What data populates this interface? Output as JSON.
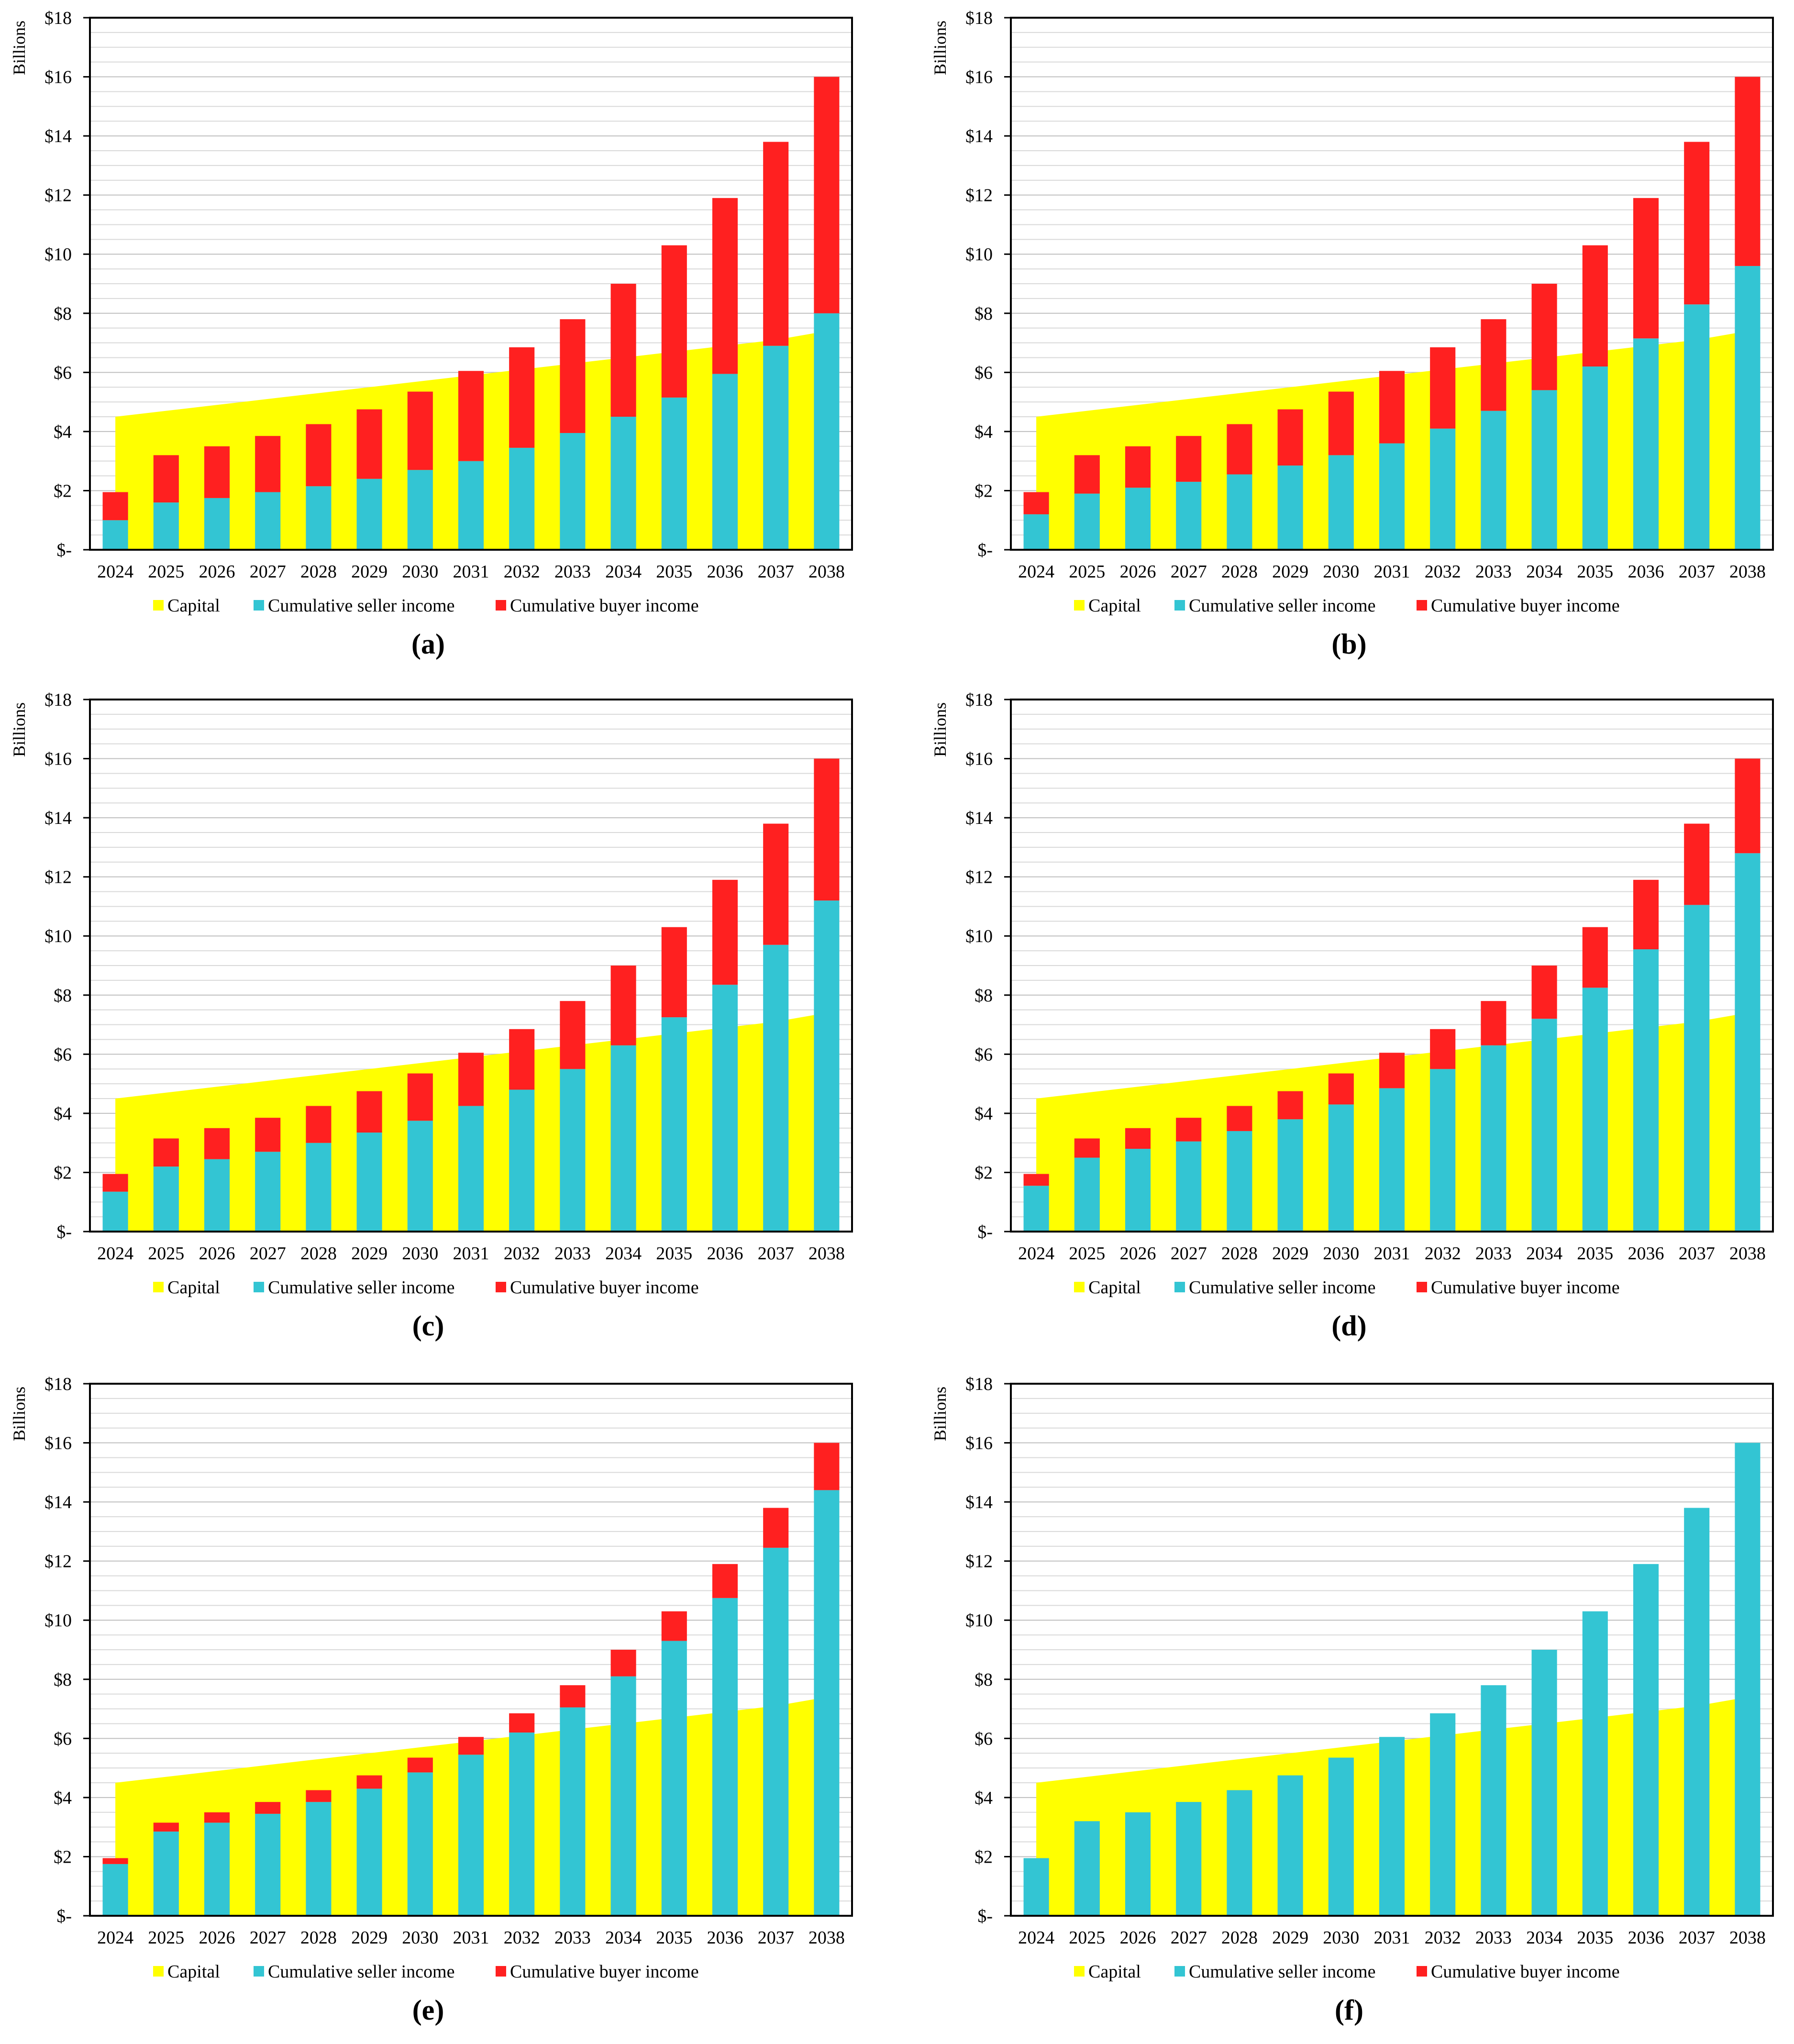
{
  "colors": {
    "capital": "#ffff00",
    "seller": "#33c5d3",
    "buyer": "#ff2020",
    "grid": "#d9d9d9",
    "axis": "#000000"
  },
  "y_axis": {
    "label": "Billions",
    "tick_labels": [
      "$-",
      "$2",
      "$4",
      "$6",
      "$8",
      "$10",
      "$12",
      "$14",
      "$16",
      "$18"
    ]
  },
  "legend": {
    "capital": "Capital",
    "seller": "Cumulative seller income",
    "buyer": "Cumulative buyer income"
  },
  "chart_data": [
    {
      "panel": "(a)",
      "type": "bar",
      "stacked": true,
      "ylabel": "Billions",
      "ylim": [
        0,
        18
      ],
      "categories": [
        "2024",
        "2025",
        "2026",
        "2027",
        "2028",
        "2029",
        "2030",
        "2031",
        "2032",
        "2033",
        "2034",
        "2035",
        "2036",
        "2037",
        "2038"
      ],
      "capital": [
        4.5,
        4.7,
        4.9,
        5.1,
        5.3,
        5.5,
        5.7,
        5.9,
        6.1,
        6.3,
        6.5,
        6.7,
        6.9,
        7.1,
        7.4
      ],
      "series": [
        {
          "name": "Cumulative seller income",
          "values": [
            1.0,
            1.6,
            1.75,
            1.95,
            2.15,
            2.4,
            2.7,
            3.0,
            3.45,
            3.95,
            4.5,
            5.15,
            5.95,
            6.9,
            8.0
          ]
        },
        {
          "name": "Cumulative buyer income",
          "values": [
            0.95,
            1.6,
            1.75,
            1.9,
            2.1,
            2.35,
            2.65,
            3.05,
            3.4,
            3.85,
            4.5,
            5.15,
            5.95,
            6.9,
            8.0
          ]
        }
      ]
    },
    {
      "panel": "(b)",
      "type": "bar",
      "stacked": true,
      "ylabel": "Billions",
      "ylim": [
        0,
        18
      ],
      "categories": [
        "2024",
        "2025",
        "2026",
        "2027",
        "2028",
        "2029",
        "2030",
        "2031",
        "2032",
        "2033",
        "2034",
        "2035",
        "2036",
        "2037",
        "2038"
      ],
      "capital": [
        4.5,
        4.7,
        4.9,
        5.1,
        5.3,
        5.5,
        5.7,
        5.9,
        6.1,
        6.3,
        6.5,
        6.7,
        6.9,
        7.1,
        7.4
      ],
      "series": [
        {
          "name": "Cumulative seller income",
          "values": [
            1.2,
            1.9,
            2.1,
            2.3,
            2.55,
            2.85,
            3.2,
            3.6,
            4.1,
            4.7,
            5.4,
            6.2,
            7.15,
            8.3,
            9.6
          ]
        },
        {
          "name": "Cumulative buyer income",
          "values": [
            0.75,
            1.3,
            1.4,
            1.55,
            1.7,
            1.9,
            2.15,
            2.45,
            2.75,
            3.1,
            3.6,
            4.1,
            4.75,
            5.5,
            6.4
          ]
        }
      ]
    },
    {
      "panel": "(c)",
      "type": "bar",
      "stacked": true,
      "ylabel": "Billions",
      "ylim": [
        0,
        18
      ],
      "categories": [
        "2024",
        "2025",
        "2026",
        "2027",
        "2028",
        "2029",
        "2030",
        "2031",
        "2032",
        "2033",
        "2034",
        "2035",
        "2036",
        "2037",
        "2038"
      ],
      "capital": [
        4.5,
        4.7,
        4.9,
        5.1,
        5.3,
        5.5,
        5.7,
        5.9,
        6.1,
        6.3,
        6.5,
        6.7,
        6.9,
        7.1,
        7.4
      ],
      "series": [
        {
          "name": "Cumulative seller income",
          "values": [
            1.35,
            2.2,
            2.45,
            2.7,
            3.0,
            3.35,
            3.75,
            4.25,
            4.8,
            5.5,
            6.3,
            7.25,
            8.35,
            9.7,
            11.2
          ]
        },
        {
          "name": "Cumulative buyer income",
          "values": [
            0.6,
            0.95,
            1.05,
            1.15,
            1.25,
            1.4,
            1.6,
            1.8,
            2.05,
            2.3,
            2.7,
            3.05,
            3.55,
            4.1,
            4.8
          ]
        }
      ]
    },
    {
      "panel": "(d)",
      "type": "bar",
      "stacked": true,
      "ylabel": "Billions",
      "ylim": [
        0,
        18
      ],
      "categories": [
        "2024",
        "2025",
        "2026",
        "2027",
        "2028",
        "2029",
        "2030",
        "2031",
        "2032",
        "2033",
        "2034",
        "2035",
        "2036",
        "2037",
        "2038"
      ],
      "capital": [
        4.5,
        4.7,
        4.9,
        5.1,
        5.3,
        5.5,
        5.7,
        5.9,
        6.1,
        6.3,
        6.5,
        6.7,
        6.9,
        7.1,
        7.4
      ],
      "series": [
        {
          "name": "Cumulative seller income",
          "values": [
            1.55,
            2.5,
            2.8,
            3.05,
            3.4,
            3.8,
            4.3,
            4.85,
            5.5,
            6.3,
            7.2,
            8.25,
            9.55,
            11.05,
            12.8
          ]
        },
        {
          "name": "Cumulative buyer income",
          "values": [
            0.4,
            0.65,
            0.7,
            0.8,
            0.85,
            0.95,
            1.05,
            1.2,
            1.35,
            1.5,
            1.8,
            2.05,
            2.35,
            2.75,
            3.2
          ]
        }
      ]
    },
    {
      "panel": "(e)",
      "type": "bar",
      "stacked": true,
      "ylabel": "Billions",
      "ylim": [
        0,
        18
      ],
      "categories": [
        "2024",
        "2025",
        "2026",
        "2027",
        "2028",
        "2029",
        "2030",
        "2031",
        "2032",
        "2033",
        "2034",
        "2035",
        "2036",
        "2037",
        "2038"
      ],
      "capital": [
        4.5,
        4.7,
        4.9,
        5.1,
        5.3,
        5.5,
        5.7,
        5.9,
        6.1,
        6.3,
        6.5,
        6.7,
        6.9,
        7.1,
        7.4
      ],
      "series": [
        {
          "name": "Cumulative seller income",
          "values": [
            1.75,
            2.85,
            3.15,
            3.45,
            3.85,
            4.3,
            4.85,
            5.45,
            6.2,
            7.05,
            8.1,
            9.3,
            10.75,
            12.45,
            14.4
          ]
        },
        {
          "name": "Cumulative buyer income",
          "values": [
            0.2,
            0.3,
            0.35,
            0.4,
            0.4,
            0.45,
            0.5,
            0.6,
            0.65,
            0.75,
            0.9,
            1.0,
            1.15,
            1.35,
            1.6
          ]
        }
      ]
    },
    {
      "panel": "(f)",
      "type": "bar",
      "stacked": true,
      "ylabel": "Billions",
      "ylim": [
        0,
        18
      ],
      "categories": [
        "2024",
        "2025",
        "2026",
        "2027",
        "2028",
        "2029",
        "2030",
        "2031",
        "2032",
        "2033",
        "2034",
        "2035",
        "2036",
        "2037",
        "2038"
      ],
      "capital": [
        4.5,
        4.7,
        4.9,
        5.1,
        5.3,
        5.5,
        5.7,
        5.9,
        6.1,
        6.3,
        6.5,
        6.7,
        6.9,
        7.1,
        7.4
      ],
      "series": [
        {
          "name": "Cumulative seller income",
          "values": [
            1.95,
            3.2,
            3.5,
            3.85,
            4.25,
            4.75,
            5.35,
            6.05,
            6.85,
            7.8,
            9.0,
            10.3,
            11.9,
            13.8,
            16.0
          ]
        },
        {
          "name": "Cumulative buyer income",
          "values": [
            0,
            0,
            0,
            0,
            0,
            0,
            0,
            0,
            0,
            0,
            0,
            0,
            0,
            0,
            0
          ]
        }
      ]
    }
  ]
}
